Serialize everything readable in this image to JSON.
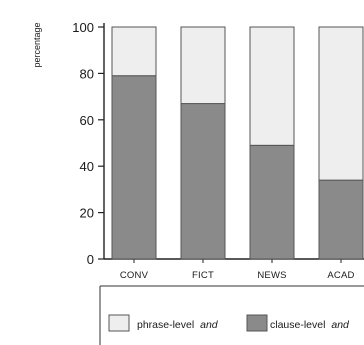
{
  "chart_data": {
    "type": "bar",
    "stacked": true,
    "ylabel": "percentage",
    "xlabel": "",
    "ylim": [
      0,
      100
    ],
    "yticks": [
      "0",
      "20",
      "40",
      "60",
      "80",
      "100"
    ],
    "categories": [
      "CONV",
      "FICT",
      "NEWS",
      "ACAD"
    ],
    "series": [
      {
        "name": "clause-level and",
        "values": [
          79,
          67,
          49,
          34
        ],
        "color": "#8a8a8a"
      },
      {
        "name": "phrase-level and",
        "values": [
          21,
          33,
          51,
          66
        ],
        "color": "#eeeeee"
      }
    ],
    "legend": {
      "position": "bottom",
      "entries": [
        {
          "prefix": "phrase-level ",
          "italic": "and",
          "swatch": "#eeeeee"
        },
        {
          "prefix": "clause-level ",
          "italic": "and",
          "swatch": "#8a8a8a"
        }
      ]
    },
    "grid": false
  }
}
